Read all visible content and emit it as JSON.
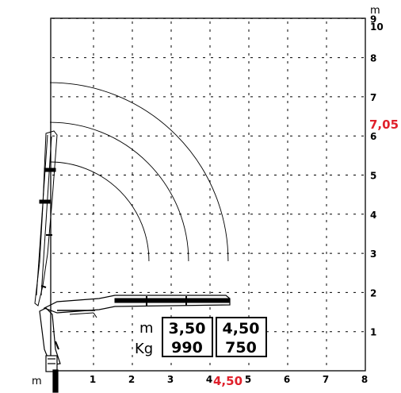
{
  "axes": {
    "x_unit": "m",
    "y_unit": "m",
    "x_ticks": [
      "1",
      "2",
      "3",
      "4",
      "5",
      "6",
      "7",
      "8"
    ],
    "y_ticks": [
      "1",
      "2",
      "3",
      "4",
      "5",
      "6",
      "7",
      "8",
      "9",
      "10"
    ]
  },
  "highlights": {
    "max_height": "7,05",
    "max_reach": "4,50",
    "color": "#e0202b"
  },
  "capacity_table": {
    "row_labels": [
      "m",
      "Kg"
    ],
    "columns": [
      {
        "reach": "3,50",
        "load": "990"
      },
      {
        "reach": "4,50",
        "load": "750"
      }
    ]
  },
  "arcs": [
    {
      "radius_m": 2.5
    },
    {
      "radius_m": 3.5
    },
    {
      "radius_m": 4.5
    }
  ],
  "boom": {
    "max_height_m": 7.05,
    "max_reach_m": 4.5,
    "boom_height_m": 2.8
  }
}
